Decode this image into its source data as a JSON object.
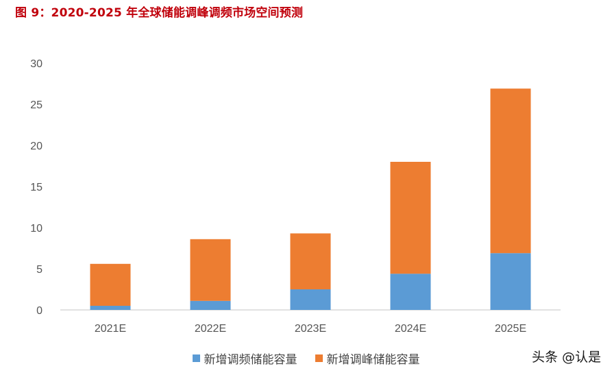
{
  "title": "图 9：2020-2025 年全球储能调峰调频市场空间预测",
  "watermark": "头条 @认是",
  "colors": {
    "title": "#c0000b",
    "series1": "#5b9bd5",
    "series2": "#ed7d31",
    "axis": "#d9d9d9"
  },
  "chart_data": {
    "type": "bar",
    "stacked": true,
    "title": "",
    "xlabel": "",
    "ylabel": "",
    "categories": [
      "2021E",
      "2022E",
      "2023E",
      "2024E",
      "2025E"
    ],
    "ylim": [
      0,
      30
    ],
    "yticks": [
      0,
      5,
      10,
      15,
      20,
      25,
      30
    ],
    "grid": false,
    "legend_position": "bottom",
    "series": [
      {
        "name": "新增调频储能容量",
        "values": [
          0.5,
          1.1,
          2.5,
          4.4,
          6.9
        ]
      },
      {
        "name": "新增调峰储能容量",
        "values": [
          5.1,
          7.5,
          6.8,
          13.6,
          20.0
        ]
      }
    ]
  }
}
